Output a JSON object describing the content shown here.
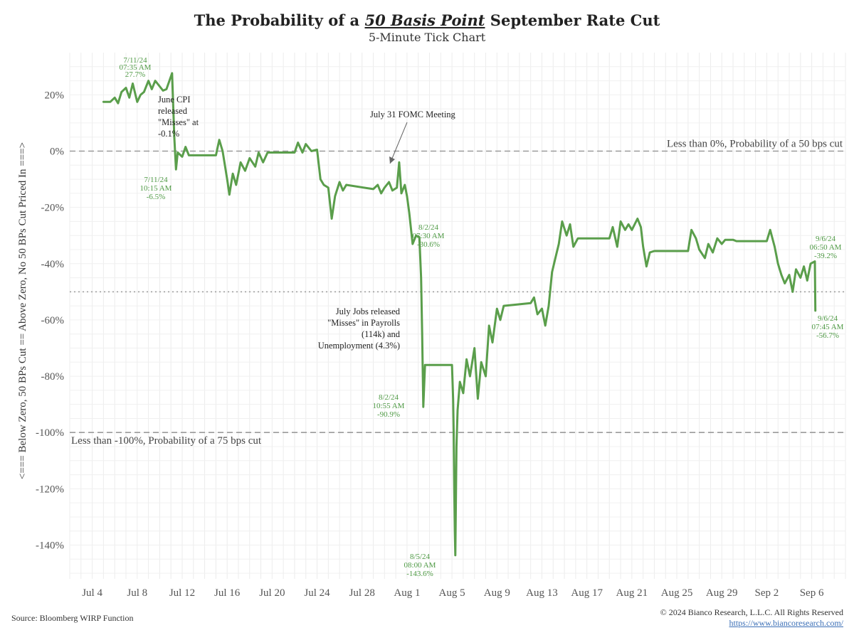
{
  "title": {
    "pre": "The Probability of a ",
    "em": "50 Basis Point",
    "post": " September Rate Cut"
  },
  "subtitle": "5-Minute Tick Chart",
  "source": "Source: Bloomberg WIRP Function",
  "copyright": "© 2024 Bianco Research, L.L.C. All Rights Reserved",
  "url": "https://www.biancoresearch.com/",
  "colors": {
    "line": "#5a9e4b",
    "annotation_green": "#4f9a45",
    "reference": "#9a9a9a"
  },
  "chart_data": {
    "type": "line",
    "ylabel": "<=== Below Zero, 50 BPs Cut == Above Zero, No 50 BPs Cut Priced In ===>",
    "ylim": [
      -152,
      35
    ],
    "xlim": [
      "2024-07-02",
      "2024-09-09"
    ],
    "x_ticks": [
      "Jul 4",
      "Jul 8",
      "Jul 12",
      "Jul 16",
      "Jul 20",
      "Jul 24",
      "Jul 28",
      "Aug 1",
      "Aug 5",
      "Aug 9",
      "Aug 13",
      "Aug 17",
      "Aug 21",
      "Aug 25",
      "Aug 29",
      "Sep 2",
      "Sep 6"
    ],
    "x_tick_dates": [
      "2024-07-04",
      "2024-07-08",
      "2024-07-12",
      "2024-07-16",
      "2024-07-20",
      "2024-07-24",
      "2024-07-28",
      "2024-08-01",
      "2024-08-05",
      "2024-08-09",
      "2024-08-13",
      "2024-08-17",
      "2024-08-21",
      "2024-08-25",
      "2024-08-29",
      "2024-09-02",
      "2024-09-06"
    ],
    "y_ticks": [
      20,
      0,
      -20,
      -40,
      -60,
      -80,
      -100,
      -120,
      -140
    ],
    "y_tick_labels": [
      "20%",
      "0%",
      "-20%",
      "-40%",
      "-60%",
      "-80%",
      "-100%",
      "-120%",
      "-140%"
    ],
    "grid": true,
    "reference_lines": [
      {
        "y": 0,
        "style": "dashed",
        "label": "Less than 0%, Probability of a 50 bps cut",
        "label_pos": "right"
      },
      {
        "y": -50,
        "style": "dotted",
        "label": "",
        "label_pos": "none"
      },
      {
        "y": -100,
        "style": "dashed",
        "label": "Less than -100%, Probability of a 75 bps cut",
        "label_pos": "left"
      }
    ],
    "series": [
      {
        "points": [
          [
            "2024-07-05",
            17.5
          ],
          [
            "2024-07-05.6",
            17.5
          ],
          [
            "2024-07-06",
            19
          ],
          [
            "2024-07-06.3",
            17
          ],
          [
            "2024-07-06.6",
            21
          ],
          [
            "2024-07-07",
            22.5
          ],
          [
            "2024-07-07.3",
            19
          ],
          [
            "2024-07-07.6",
            24
          ],
          [
            "2024-07-08",
            17.5
          ],
          [
            "2024-07-08.3",
            20
          ],
          [
            "2024-07-08.6",
            21
          ],
          [
            "2024-07-09",
            25
          ],
          [
            "2024-07-09.3",
            22
          ],
          [
            "2024-07-09.6",
            25
          ],
          [
            "2024-07-10",
            23
          ],
          [
            "2024-07-10.3",
            21.5
          ],
          [
            "2024-07-10.6",
            22
          ],
          [
            "2024-07-11.1",
            27.7
          ],
          [
            "2024-07-11.3",
            5
          ],
          [
            "2024-07-11.45",
            -6.5
          ],
          [
            "2024-07-11.6",
            -0.5
          ],
          [
            "2024-07-12",
            -2
          ],
          [
            "2024-07-12.3",
            1.5
          ],
          [
            "2024-07-12.6",
            -1.5
          ],
          [
            "2024-07-15",
            -1.5
          ],
          [
            "2024-07-15.3",
            4
          ],
          [
            "2024-07-15.6",
            0
          ],
          [
            "2024-07-16",
            -10
          ],
          [
            "2024-07-16.2",
            -15.5
          ],
          [
            "2024-07-16.5",
            -8
          ],
          [
            "2024-07-16.8",
            -12
          ],
          [
            "2024-07-17.2",
            -4
          ],
          [
            "2024-07-17.6",
            -7
          ],
          [
            "2024-07-18",
            -2.5
          ],
          [
            "2024-07-18.5",
            -5.5
          ],
          [
            "2024-07-18.8",
            -0.5
          ],
          [
            "2024-07-19.2",
            -4
          ],
          [
            "2024-07-19.6",
            -0.5
          ],
          [
            "2024-07-22",
            -0.5
          ],
          [
            "2024-07-22.3",
            3
          ],
          [
            "2024-07-22.7",
            -0.5
          ],
          [
            "2024-07-23",
            2.5
          ],
          [
            "2024-07-23.5",
            0
          ],
          [
            "2024-07-24",
            0.5
          ],
          [
            "2024-07-24.3",
            -10
          ],
          [
            "2024-07-24.6",
            -12
          ],
          [
            "2024-07-25",
            -13
          ],
          [
            "2024-07-25.3",
            -24
          ],
          [
            "2024-07-25.6",
            -16
          ],
          [
            "2024-07-26",
            -11
          ],
          [
            "2024-07-26.3",
            -14
          ],
          [
            "2024-07-26.6",
            -12
          ],
          [
            "2024-07-29",
            -13.5
          ],
          [
            "2024-07-29.4",
            -12
          ],
          [
            "2024-07-29.7",
            -15
          ],
          [
            "2024-07-30",
            -13
          ],
          [
            "2024-07-30.4",
            -11
          ],
          [
            "2024-07-30.7",
            -14
          ],
          [
            "2024-07-31.1",
            -13
          ],
          [
            "2024-07-31.3",
            -4
          ],
          [
            "2024-07-31.5",
            -15
          ],
          [
            "2024-07-31.8",
            -12
          ],
          [
            "2024-08-01",
            -16
          ],
          [
            "2024-08-01.2",
            -22
          ],
          [
            "2024-08-01.5",
            -33
          ],
          [
            "2024-08-01.8",
            -30
          ],
          [
            "2024-08-02.1",
            -30.6
          ],
          [
            "2024-08-02.25",
            -45
          ],
          [
            "2024-08-02.35",
            -65
          ],
          [
            "2024-08-02.45",
            -90.9
          ],
          [
            "2024-08-02.6",
            -76
          ],
          [
            "2024-08-05",
            -76
          ],
          [
            "2024-08-05.1",
            -88
          ],
          [
            "2024-08-05.15",
            -100
          ],
          [
            "2024-08-05.2",
            -120
          ],
          [
            "2024-08-05.25",
            -135
          ],
          [
            "2024-08-05.3",
            -143.6
          ],
          [
            "2024-08-05.4",
            -105
          ],
          [
            "2024-08-05.5",
            -92
          ],
          [
            "2024-08-05.7",
            -82
          ],
          [
            "2024-08-06",
            -86
          ],
          [
            "2024-08-06.3",
            -74
          ],
          [
            "2024-08-06.6",
            -80
          ],
          [
            "2024-08-07",
            -70
          ],
          [
            "2024-08-07.3",
            -88
          ],
          [
            "2024-08-07.6",
            -75
          ],
          [
            "2024-08-08",
            -80
          ],
          [
            "2024-08-08.3",
            -62
          ],
          [
            "2024-08-08.6",
            -68
          ],
          [
            "2024-08-09",
            -56
          ],
          [
            "2024-08-09.3",
            -60
          ],
          [
            "2024-08-09.6",
            -55
          ],
          [
            "2024-08-12",
            -54
          ],
          [
            "2024-08-12.3",
            -52
          ],
          [
            "2024-08-12.6",
            -58
          ],
          [
            "2024-08-13",
            -56
          ],
          [
            "2024-08-13.3",
            -62
          ],
          [
            "2024-08-13.6",
            -55
          ],
          [
            "2024-08-13.9",
            -43
          ],
          [
            "2024-08-14.2",
            -38
          ],
          [
            "2024-08-14.5",
            -33
          ],
          [
            "2024-08-14.8",
            -25
          ],
          [
            "2024-08-15.2",
            -30
          ],
          [
            "2024-08-15.5",
            -26
          ],
          [
            "2024-08-15.8",
            -34
          ],
          [
            "2024-08-16.2",
            -31
          ],
          [
            "2024-08-19",
            -31
          ],
          [
            "2024-08-19.3",
            -27
          ],
          [
            "2024-08-19.7",
            -34
          ],
          [
            "2024-08-20",
            -25
          ],
          [
            "2024-08-20.4",
            -28
          ],
          [
            "2024-08-20.7",
            -26
          ],
          [
            "2024-08-21",
            -28
          ],
          [
            "2024-08-21.5",
            -24
          ],
          [
            "2024-08-21.8",
            -27
          ],
          [
            "2024-08-22",
            -34
          ],
          [
            "2024-08-22.3",
            -41
          ],
          [
            "2024-08-22.6",
            -36
          ],
          [
            "2024-08-23",
            -35.5
          ],
          [
            "2024-08-26",
            -35.5
          ],
          [
            "2024-08-26.3",
            -28
          ],
          [
            "2024-08-26.7",
            -31
          ],
          [
            "2024-08-27",
            -35
          ],
          [
            "2024-08-27.5",
            -38
          ],
          [
            "2024-08-27.8",
            -33
          ],
          [
            "2024-08-28.2",
            -36
          ],
          [
            "2024-08-28.6",
            -31
          ],
          [
            "2024-08-29",
            -33
          ],
          [
            "2024-08-29.3",
            -31.5
          ],
          [
            "2024-08-30",
            -31.5
          ],
          [
            "2024-08-30.3",
            -32
          ],
          [
            "2024-09-02",
            -32
          ],
          [
            "2024-09-02.3",
            -28
          ],
          [
            "2024-09-02.7",
            -34
          ],
          [
            "2024-09-03",
            -40
          ],
          [
            "2024-09-03.3",
            -44
          ],
          [
            "2024-09-03.6",
            -47
          ],
          [
            "2024-09-04",
            -44
          ],
          [
            "2024-09-04.3",
            -50
          ],
          [
            "2024-09-04.6",
            -42
          ],
          [
            "2024-09-05",
            -45
          ],
          [
            "2024-09-05.3",
            -41
          ],
          [
            "2024-09-05.6",
            -46
          ],
          [
            "2024-09-05.9",
            -40
          ],
          [
            "2024-09-06.28",
            -39.2
          ],
          [
            "2024-09-06.32",
            -56.7
          ]
        ]
      }
    ],
    "annotations": [
      {
        "id": "cpi",
        "lines": [
          "June CPI",
          "released",
          "\"Misses\" at",
          "-0.1%"
        ],
        "color": "dark"
      },
      {
        "id": "fomc",
        "lines": [
          "July 31 FOMC Meeting"
        ],
        "color": "dark"
      },
      {
        "id": "jobs",
        "lines": [
          "July Jobs released",
          "\"Misses\" in Payrolls",
          "(114k) and",
          "Unemployment (4.3%)"
        ],
        "color": "dark"
      },
      {
        "id": "p1",
        "lines": [
          "7/11/24",
          "07:35 AM",
          "27.7%"
        ],
        "color": "green"
      },
      {
        "id": "p2",
        "lines": [
          "7/11/24",
          "10:15 AM",
          "-6.5%"
        ],
        "color": "green"
      },
      {
        "id": "p3",
        "lines": [
          "8/2/24",
          "07:30 AM",
          "-30.6%"
        ],
        "color": "green"
      },
      {
        "id": "p4",
        "lines": [
          "8/2/24",
          "10:55 AM",
          "-90.9%"
        ],
        "color": "green"
      },
      {
        "id": "p5",
        "lines": [
          "8/5/24",
          "08:00 AM",
          "-143.6%"
        ],
        "color": "green"
      },
      {
        "id": "p6",
        "lines": [
          "9/6/24",
          "06:50 AM",
          "-39.2%"
        ],
        "color": "green"
      },
      {
        "id": "p7",
        "lines": [
          "9/6/24",
          "07:45 AM",
          "-56.7%"
        ],
        "color": "green"
      }
    ]
  }
}
